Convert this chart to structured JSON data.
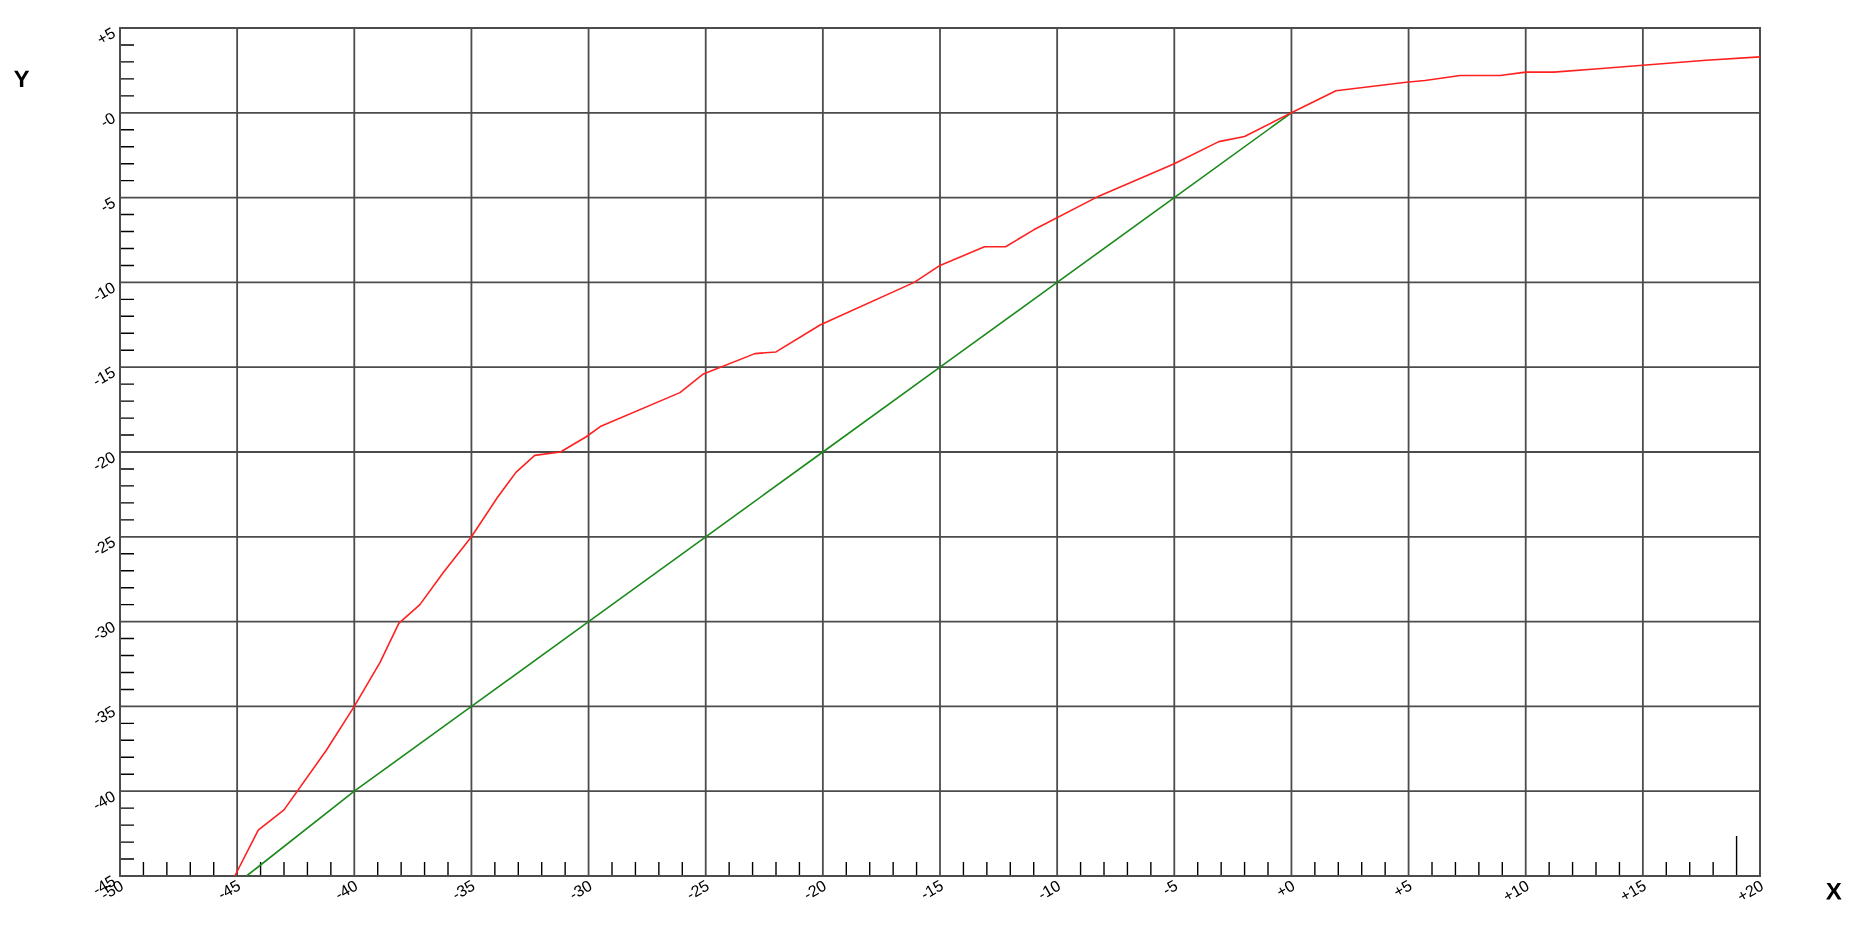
{
  "chart_data": {
    "type": "line",
    "xlabel": "X",
    "ylabel": "Y",
    "xlim": [
      -50,
      20
    ],
    "ylim": [
      -45,
      5
    ],
    "xticks": [
      {
        "value": -50,
        "label": "-50"
      },
      {
        "value": -45,
        "label": "-45"
      },
      {
        "value": -40,
        "label": "-40"
      },
      {
        "value": -35,
        "label": "-35"
      },
      {
        "value": -30,
        "label": "-30"
      },
      {
        "value": -25,
        "label": "-25"
      },
      {
        "value": -20,
        "label": "-20"
      },
      {
        "value": -15,
        "label": "-15"
      },
      {
        "value": -10,
        "label": "-10"
      },
      {
        "value": -5,
        "label": "-5"
      },
      {
        "value": 0,
        "label": "+0"
      },
      {
        "value": 5,
        "label": "+5"
      },
      {
        "value": 10,
        "label": "+10"
      },
      {
        "value": 15,
        "label": "+15"
      },
      {
        "value": 20,
        "label": "+20"
      }
    ],
    "yticks": [
      {
        "value": 5,
        "label": "+5"
      },
      {
        "value": 0,
        "label": "-0"
      },
      {
        "value": -5,
        "label": "-5"
      },
      {
        "value": -10,
        "label": "-10"
      },
      {
        "value": -15,
        "label": "-15"
      },
      {
        "value": -20,
        "label": "-20"
      },
      {
        "value": -25,
        "label": "-25"
      },
      {
        "value": -30,
        "label": "-30"
      },
      {
        "value": -35,
        "label": "-35"
      },
      {
        "value": -40,
        "label": "-40"
      },
      {
        "value": -45,
        "label": "-45"
      }
    ],
    "grid": true,
    "marker": "none",
    "line_style": "solid",
    "series": [
      {
        "color": "#1a8a1a",
        "x": [
          -44.6,
          -40,
          -35,
          -30,
          -25,
          -20,
          -15,
          -10,
          -5,
          0
        ],
        "values": [
          -45,
          -40,
          -35,
          -30,
          -25,
          -20,
          -15,
          -10,
          -5,
          0
        ]
      },
      {
        "color": "#ff2020",
        "x": [
          -45.1,
          -44.1,
          -43,
          -41.2,
          -40,
          -38.9,
          -38.1,
          -37.2,
          -36.2,
          -35,
          -33.9,
          -33.1,
          -32.3,
          -31.2,
          -30.1,
          -29.5,
          -27.8,
          -26.1,
          -25.1,
          -22.9,
          -22,
          -20.1,
          -16.1,
          -15,
          -13.1,
          -12.2,
          -11,
          -8.2,
          -5,
          -3.1,
          -2,
          0,
          1.9,
          4.9,
          5.7,
          7.2,
          8.9,
          10,
          11.2,
          13.1,
          15,
          17.7,
          20
        ],
        "values": [
          -45,
          -42.3,
          -41.1,
          -37.6,
          -35,
          -32.4,
          -30.1,
          -29,
          -27.1,
          -25,
          -22.7,
          -21.2,
          -20.2,
          -20,
          -19.1,
          -18.5,
          -17.5,
          -16.5,
          -15.4,
          -14.2,
          -14.1,
          -12.5,
          -10,
          -9,
          -7.9,
          -7.9,
          -6.9,
          -4.9,
          -3,
          -1.7,
          -1.4,
          0,
          1.3,
          1.8,
          1.9,
          2.2,
          2.2,
          2.4,
          2.4,
          2.6,
          2.8,
          3.1,
          3.3
        ]
      }
    ]
  }
}
